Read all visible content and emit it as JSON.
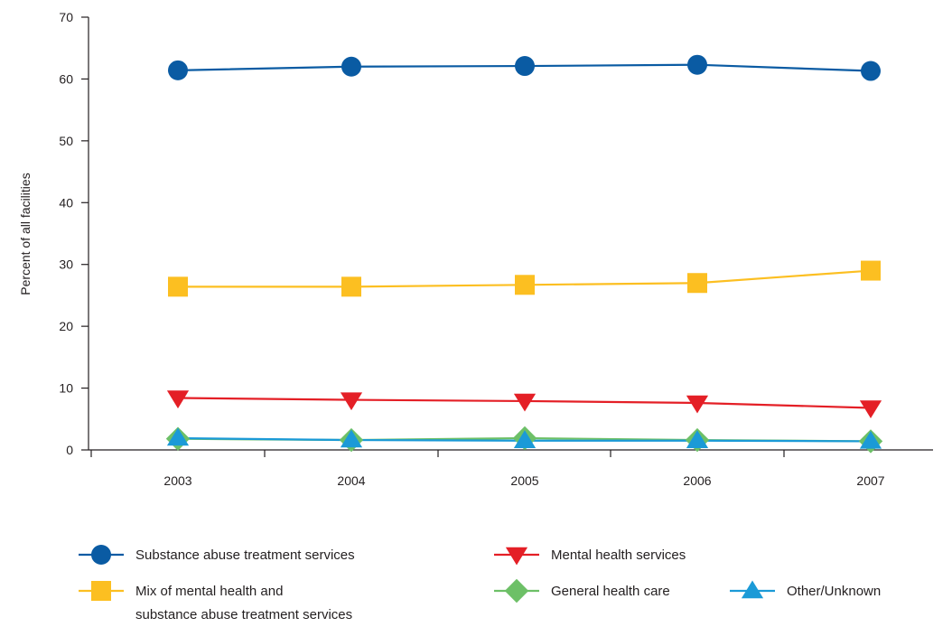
{
  "chart_data": {
    "type": "line",
    "title": "",
    "xlabel": "",
    "ylabel": "Percent of all facilities",
    "x": [
      "2003",
      "2004",
      "2005",
      "2006",
      "2007"
    ],
    "ylim": [
      0,
      70
    ],
    "yticks": [
      "0",
      "10",
      "20",
      "30",
      "40",
      "50",
      "60",
      "70"
    ],
    "grid": false,
    "legend_position": "bottom",
    "series": [
      {
        "name": "Substance abuse treatment services",
        "values": [
          61.4,
          62.0,
          62.1,
          62.3,
          61.3
        ],
        "color": "#0a5ba3",
        "marker": "circle"
      },
      {
        "name": "Mix of mental health and substance abuse treatment services",
        "legend_lines": [
          "Mix of mental health and",
          "substance abuse treatment services"
        ],
        "values": [
          26.4,
          26.4,
          26.7,
          27.0,
          29.0
        ],
        "color": "#fcbf21",
        "marker": "square"
      },
      {
        "name": "Mental health services",
        "values": [
          8.4,
          8.1,
          7.9,
          7.6,
          6.8
        ],
        "color": "#e41f26",
        "marker": "triangle-down"
      },
      {
        "name": "General health care",
        "values": [
          1.8,
          1.6,
          1.9,
          1.6,
          1.4
        ],
        "color": "#6dc067",
        "marker": "diamond"
      },
      {
        "name": "Other/Unknown",
        "values": [
          1.9,
          1.6,
          1.5,
          1.5,
          1.4
        ],
        "color": "#1b9ad7",
        "marker": "triangle-up"
      }
    ]
  }
}
